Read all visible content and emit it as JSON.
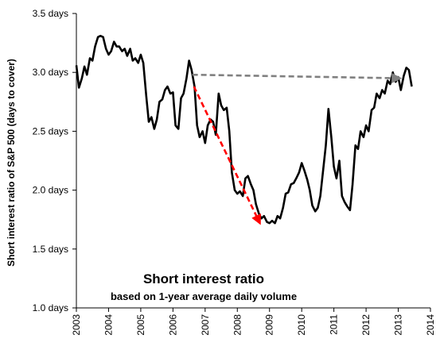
{
  "chart_data": {
    "type": "line",
    "title": "",
    "xlabel": "",
    "ylabel": "Short interest ratio of S&P 500 (days to cover)",
    "xlim": [
      2003,
      2014
    ],
    "ylim": [
      1.0,
      3.5
    ],
    "x_ticks": [
      {
        "value": 2003,
        "label": "2003"
      },
      {
        "value": 2004,
        "label": "2004"
      },
      {
        "value": 2005,
        "label": "2005"
      },
      {
        "value": 2006,
        "label": "2006"
      },
      {
        "value": 2007,
        "label": "2007"
      },
      {
        "value": 2008,
        "label": "2008"
      },
      {
        "value": 2009,
        "label": "2009"
      },
      {
        "value": 2010,
        "label": "2010"
      },
      {
        "value": 2011,
        "label": "2011"
      },
      {
        "value": 2012,
        "label": "2012"
      },
      {
        "value": 2013,
        "label": "2013"
      },
      {
        "value": 2014,
        "label": "2014"
      }
    ],
    "y_ticks": [
      {
        "value": 1.0,
        "label": "1.0 days"
      },
      {
        "value": 1.5,
        "label": "1.5 days"
      },
      {
        "value": 2.0,
        "label": "2.0 days"
      },
      {
        "value": 2.5,
        "label": "2.5 days"
      },
      {
        "value": 3.0,
        "label": "3.0 days"
      },
      {
        "value": 3.5,
        "label": "3.5 days"
      }
    ],
    "grid": false,
    "legend": "none",
    "annotation": {
      "title": "Short interest ratio",
      "subtitle": "based on 1-year average daily volume"
    },
    "series": [
      {
        "color": "#000000",
        "points": [
          [
            2003.0,
            3.06
          ],
          [
            2003.08,
            2.87
          ],
          [
            2003.17,
            2.95
          ],
          [
            2003.25,
            3.05
          ],
          [
            2003.33,
            2.98
          ],
          [
            2003.42,
            3.12
          ],
          [
            2003.5,
            3.1
          ],
          [
            2003.58,
            3.22
          ],
          [
            2003.67,
            3.3
          ],
          [
            2003.75,
            3.31
          ],
          [
            2003.83,
            3.3
          ],
          [
            2003.92,
            3.2
          ],
          [
            2004.0,
            3.15
          ],
          [
            2004.08,
            3.18
          ],
          [
            2004.17,
            3.26
          ],
          [
            2004.25,
            3.22
          ],
          [
            2004.33,
            3.22
          ],
          [
            2004.42,
            3.18
          ],
          [
            2004.5,
            3.2
          ],
          [
            2004.58,
            3.14
          ],
          [
            2004.67,
            3.2
          ],
          [
            2004.75,
            3.1
          ],
          [
            2004.83,
            3.12
          ],
          [
            2004.92,
            3.08
          ],
          [
            2005.0,
            3.15
          ],
          [
            2005.08,
            3.08
          ],
          [
            2005.17,
            2.8
          ],
          [
            2005.25,
            2.58
          ],
          [
            2005.33,
            2.62
          ],
          [
            2005.42,
            2.52
          ],
          [
            2005.5,
            2.6
          ],
          [
            2005.58,
            2.75
          ],
          [
            2005.67,
            2.77
          ],
          [
            2005.75,
            2.85
          ],
          [
            2005.83,
            2.88
          ],
          [
            2005.92,
            2.82
          ],
          [
            2006.0,
            2.83
          ],
          [
            2006.08,
            2.55
          ],
          [
            2006.17,
            2.52
          ],
          [
            2006.25,
            2.78
          ],
          [
            2006.33,
            2.82
          ],
          [
            2006.42,
            2.95
          ],
          [
            2006.5,
            3.1
          ],
          [
            2006.58,
            3.02
          ],
          [
            2006.67,
            2.88
          ],
          [
            2006.75,
            2.55
          ],
          [
            2006.83,
            2.45
          ],
          [
            2006.92,
            2.5
          ],
          [
            2007.0,
            2.4
          ],
          [
            2007.08,
            2.55
          ],
          [
            2007.17,
            2.6
          ],
          [
            2007.25,
            2.58
          ],
          [
            2007.33,
            2.47
          ],
          [
            2007.42,
            2.82
          ],
          [
            2007.5,
            2.72
          ],
          [
            2007.58,
            2.68
          ],
          [
            2007.67,
            2.7
          ],
          [
            2007.75,
            2.5
          ],
          [
            2007.83,
            2.15
          ],
          [
            2007.92,
            2.0
          ],
          [
            2008.0,
            1.97
          ],
          [
            2008.08,
            1.99
          ],
          [
            2008.17,
            1.95
          ],
          [
            2008.25,
            2.1
          ],
          [
            2008.33,
            2.12
          ],
          [
            2008.42,
            2.05
          ],
          [
            2008.5,
            2.0
          ],
          [
            2008.58,
            1.88
          ],
          [
            2008.67,
            1.8
          ],
          [
            2008.75,
            1.76
          ],
          [
            2008.83,
            1.78
          ],
          [
            2008.92,
            1.73
          ],
          [
            2009.0,
            1.72
          ],
          [
            2009.08,
            1.74
          ],
          [
            2009.17,
            1.72
          ],
          [
            2009.25,
            1.78
          ],
          [
            2009.33,
            1.76
          ],
          [
            2009.42,
            1.85
          ],
          [
            2009.5,
            1.97
          ],
          [
            2009.58,
            1.98
          ],
          [
            2009.67,
            2.05
          ],
          [
            2009.75,
            2.06
          ],
          [
            2009.83,
            2.1
          ],
          [
            2009.92,
            2.15
          ],
          [
            2010.0,
            2.23
          ],
          [
            2010.08,
            2.17
          ],
          [
            2010.17,
            2.09
          ],
          [
            2010.25,
            2.0
          ],
          [
            2010.33,
            1.87
          ],
          [
            2010.42,
            1.82
          ],
          [
            2010.5,
            1.85
          ],
          [
            2010.58,
            1.95
          ],
          [
            2010.67,
            2.18
          ],
          [
            2010.75,
            2.38
          ],
          [
            2010.83,
            2.69
          ],
          [
            2010.92,
            2.45
          ],
          [
            2011.0,
            2.2
          ],
          [
            2011.08,
            2.1
          ],
          [
            2011.17,
            2.25
          ],
          [
            2011.25,
            1.95
          ],
          [
            2011.33,
            1.9
          ],
          [
            2011.42,
            1.86
          ],
          [
            2011.5,
            1.83
          ],
          [
            2011.58,
            2.05
          ],
          [
            2011.67,
            2.38
          ],
          [
            2011.75,
            2.35
          ],
          [
            2011.83,
            2.5
          ],
          [
            2011.92,
            2.45
          ],
          [
            2012.0,
            2.55
          ],
          [
            2012.08,
            2.5
          ],
          [
            2012.17,
            2.68
          ],
          [
            2012.25,
            2.7
          ],
          [
            2012.33,
            2.82
          ],
          [
            2012.42,
            2.78
          ],
          [
            2012.5,
            2.85
          ],
          [
            2012.58,
            2.82
          ],
          [
            2012.67,
            2.93
          ],
          [
            2012.75,
            2.9
          ],
          [
            2012.83,
            3.0
          ],
          [
            2012.92,
            2.92
          ],
          [
            2013.0,
            2.96
          ],
          [
            2013.08,
            2.85
          ],
          [
            2013.17,
            2.97
          ],
          [
            2013.25,
            3.04
          ],
          [
            2013.33,
            3.02
          ],
          [
            2013.42,
            2.88
          ]
        ]
      }
    ],
    "arrows": [
      {
        "name": "red-downtrend-arrow",
        "color": "#ff0000",
        "from": [
          2006.65,
          2.88
        ],
        "to": [
          2008.7,
          1.72
        ]
      },
      {
        "name": "grey-level-arrow",
        "color": "#808080",
        "from": [
          2006.6,
          2.98
        ],
        "to": [
          2013.05,
          2.95
        ]
      }
    ]
  }
}
